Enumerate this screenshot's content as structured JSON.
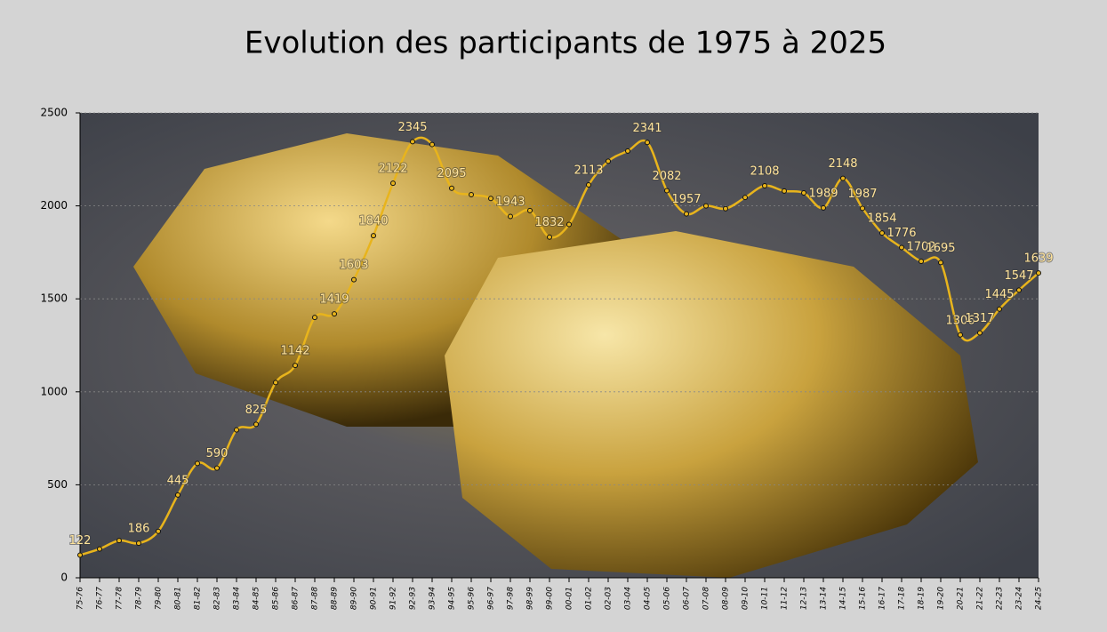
{
  "chart_data": {
    "type": "line",
    "title": "Evolution des participants de 1975 à 2025",
    "categories": [
      "75-76",
      "76-77",
      "77-78",
      "78-79",
      "79-80",
      "80-81",
      "81-82",
      "82-83",
      "83-84",
      "84-85",
      "85-86",
      "86-87",
      "87-88",
      "88-89",
      "89-90",
      "90-91",
      "91-92",
      "92-93",
      "93-94",
      "94-95",
      "95-96",
      "96-97",
      "97-98",
      "98-99",
      "99-00",
      "00-01",
      "01-02",
      "02-03",
      "03-04",
      "04-05",
      "05-06",
      "06-07",
      "07-08",
      "08-09",
      "09-10",
      "10-11",
      "11-12",
      "12-13",
      "13-14",
      "14-15",
      "15-16",
      "16-17",
      "17-18",
      "18-19",
      "19-20",
      "20-21",
      "21-22",
      "22-23",
      "23-24",
      "24-25"
    ],
    "series": [
      {
        "name": "Participants",
        "color": "#e8b41c",
        "values": [
          122,
          155,
          200,
          186,
          250,
          445,
          615,
          590,
          795,
          825,
          1050,
          1142,
          1400,
          1419,
          1603,
          1840,
          2122,
          2345,
          2330,
          2095,
          2060,
          2040,
          1943,
          1975,
          1832,
          1900,
          2113,
          2240,
          2295,
          2341,
          2082,
          1957,
          2000,
          1985,
          2045,
          2108,
          2080,
          2070,
          1989,
          2148,
          1987,
          1854,
          1776,
          1702,
          1695,
          1306,
          1317,
          1445,
          1547,
          1639
        ],
        "value_labels": [
          "122",
          null,
          null,
          "186",
          null,
          "445",
          null,
          "590",
          null,
          "825",
          null,
          "1142",
          null,
          "1419",
          "1603",
          "1840",
          "2122",
          "2345",
          null,
          "2095",
          null,
          null,
          "1943",
          null,
          "1832",
          null,
          "2113",
          null,
          null,
          "2341",
          "2082",
          "1957",
          null,
          null,
          null,
          "2108",
          null,
          null,
          "1989",
          "2148",
          "1987",
          "1854",
          "1776",
          "1702",
          "1695",
          "1306",
          "1317",
          "1445",
          "1547",
          "1639"
        ]
      }
    ],
    "ylim": [
      0,
      2500
    ],
    "yticks": [
      0,
      500,
      1000,
      1500,
      2000,
      2500
    ],
    "grid": true
  }
}
